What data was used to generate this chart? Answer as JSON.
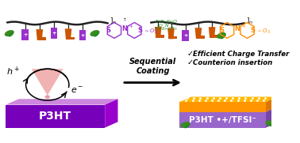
{
  "bg_color": "#ffffff",
  "p3ht_label": "P3HT",
  "p3ht_doped_label": "P3HT •+/TFSI⁻",
  "arrow_label": "Sequential\nCoating",
  "check_items": [
    "Efficient Charge Transfer",
    "Counterion insertion"
  ],
  "slab_left_front": "#7700BB",
  "slab_left_top": "#CC88DD",
  "slab_left_side": "#9900CC",
  "slab_right_purple_front": "#9966CC",
  "slab_right_purple_top": "#BB99DD",
  "slab_right_purple_side": "#7744AA",
  "slab_right_orange_front": "#FF9500",
  "slab_right_orange_top": "#FFB800",
  "slab_right_orange_side": "#DD7700",
  "polymer_line_color": "#222222",
  "purple_unit_color": "#9932CC",
  "orange_unit_color": "#CC5500",
  "green_unit_color": "#228B22",
  "pink_cone_color": "#F0AAAA",
  "pink_drop_color": "#E0A0A0",
  "tfsi_color": "#228B22",
  "ptb_left_color": "#9932CC",
  "ptb_right_color": "#FF8C00"
}
